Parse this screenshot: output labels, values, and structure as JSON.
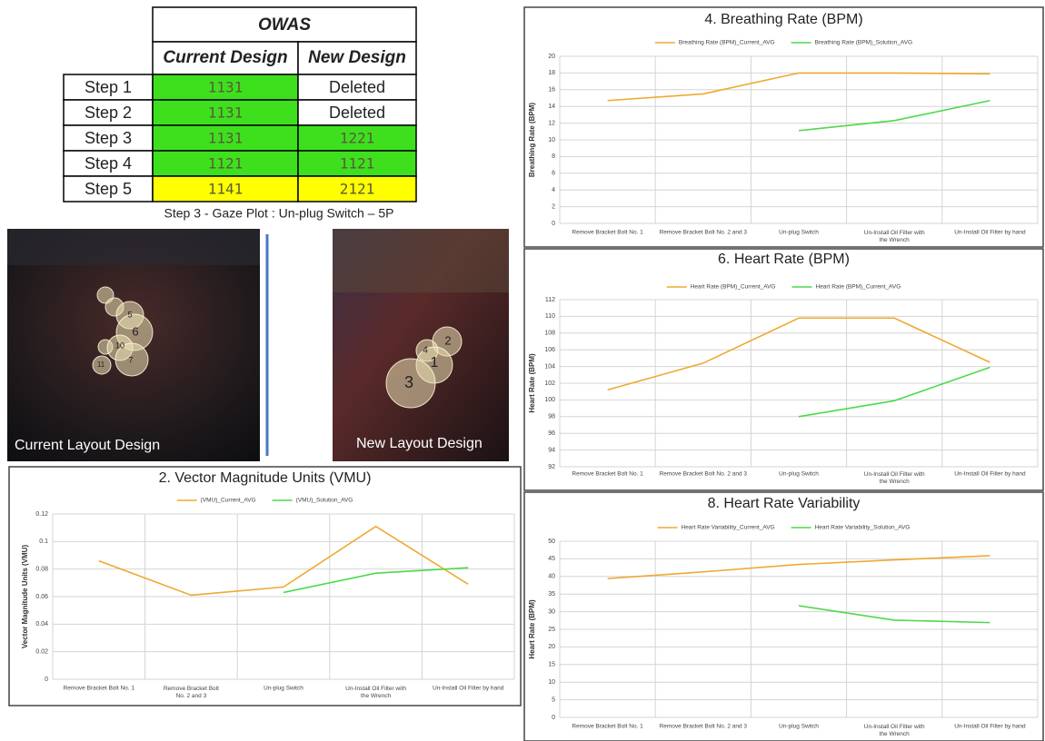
{
  "table": {
    "header": "OWAS",
    "columns": [
      "Current Design",
      "New Design"
    ],
    "rows": [
      [
        "Step 1",
        "1131",
        "Deleted"
      ],
      [
        "Step 2",
        "1131",
        "Deleted"
      ],
      [
        "Step 3",
        "1131",
        "1221"
      ],
      [
        "Step 4",
        "1121",
        "1121"
      ],
      [
        "Step 5",
        "1141",
        "2121"
      ]
    ]
  },
  "gaze_plot": {
    "caption": "Step 3 - Gaze Plot : Un-plug Switch – 5P",
    "current": {
      "label": "Current Layout Design",
      "fixations": [
        "5",
        "6",
        "10",
        "7",
        "11"
      ]
    },
    "new": {
      "label": "New Layout Design",
      "fixations": [
        "2",
        "4",
        "1",
        "3"
      ]
    }
  },
  "chart_data": [
    {
      "type": "line",
      "title": "4. Breathing Rate (BPM)",
      "y_label": "Breathing Rate (BPM)",
      "categories": [
        "Remove Bracket Bolt No. 1",
        "Remove Bracket Bolt No. 2 and 3",
        "Un-plug Switch",
        "Un-Install Oil Filter with the Wrench",
        "Un-Install Oil Filter by hand"
      ],
      "series": [
        {
          "name": "Breathing Rate (BPM)_Current_AVG",
          "color": "#f0a830",
          "values": [
            14.7,
            15.5,
            18,
            18,
            17.9
          ]
        },
        {
          "name": "Breathing Rate (BPM)_Solution_AVG",
          "color": "#4cd94c",
          "values": [
            null,
            null,
            11.1,
            12.3,
            14.7
          ]
        }
      ],
      "ylim": [
        0,
        20
      ],
      "yticks": [
        0,
        2,
        4,
        6,
        8,
        10,
        12,
        14,
        16,
        18,
        20
      ],
      "grid": true
    },
    {
      "type": "line",
      "title": "6. Heart Rate (BPM)",
      "y_label": "Heart Rate (BPM)",
      "categories": [
        "Remove Bracket Bolt No. 1",
        "Remove Bracket Bolt No. 2 and 3",
        "Un-plug Switch",
        "Un-Install Oil Filter with the Wrench",
        "Un-Install Oil Filter by hand"
      ],
      "series": [
        {
          "name": "Heart Rate (BPM)_Current_AVG",
          "color": "#f0a830",
          "values": [
            101.2,
            104.4,
            109.8,
            109.8,
            104.5
          ]
        },
        {
          "name": "Heart Rate (BPM)_Current_AVG",
          "color": "#4cd94c",
          "values": [
            null,
            null,
            98,
            99.9,
            103.9
          ]
        }
      ],
      "ylim": [
        92,
        112
      ],
      "yticks": [
        92,
        94,
        96,
        98,
        100,
        102,
        104,
        106,
        108,
        110,
        112
      ],
      "grid": true
    },
    {
      "type": "line",
      "title": "2. Vector Magnitude Units (VMU)",
      "y_label": "Vector Magnitude Units (VMU)",
      "categories": [
        "Remove Bracket Bolt No. 1",
        "Remove Bracket Bolt No. 2 and 3",
        "Un-plug Switch",
        "Un-Install Oil Filter with the Wrench",
        "Un-Install Oil Filter by hand"
      ],
      "series": [
        {
          "name": "(VMU)_Current_AVG",
          "color": "#f0a830",
          "values": [
            0.086,
            0.061,
            0.067,
            0.111,
            0.069
          ]
        },
        {
          "name": "(VMU)_Solution_AVG",
          "color": "#4cd94c",
          "values": [
            null,
            null,
            0.063,
            0.077,
            0.081
          ]
        }
      ],
      "ylim": [
        0,
        0.12
      ],
      "yticks": [
        0,
        0.02,
        0.04,
        0.06,
        0.08,
        0.1,
        0.12
      ],
      "grid": true
    },
    {
      "type": "line",
      "title": "8. Heart Rate Variability",
      "y_label": "Heart Rate (BPM)",
      "categories": [
        "Remove Bracket Bolt No. 1",
        "Remove Bracket Bolt No. 2 and 3",
        "Un-plug Switch",
        "Un-Install Oil Filter with the Wrench",
        "Un-Install Oil Filter by hand"
      ],
      "series": [
        {
          "name": "Heart Rate Variability_Current_AVG",
          "color": "#f0a830",
          "values": [
            39.4,
            41.3,
            43.4,
            44.7,
            45.9
          ]
        },
        {
          "name": "Heart Rate Variability_Solution_AVG",
          "color": "#4cd94c",
          "values": [
            null,
            null,
            31.7,
            27.6,
            26.9
          ]
        }
      ],
      "ylim": [
        0,
        50
      ],
      "yticks": [
        0,
        5,
        10,
        15,
        20,
        25,
        30,
        35,
        40,
        45,
        50
      ],
      "grid": true
    }
  ]
}
